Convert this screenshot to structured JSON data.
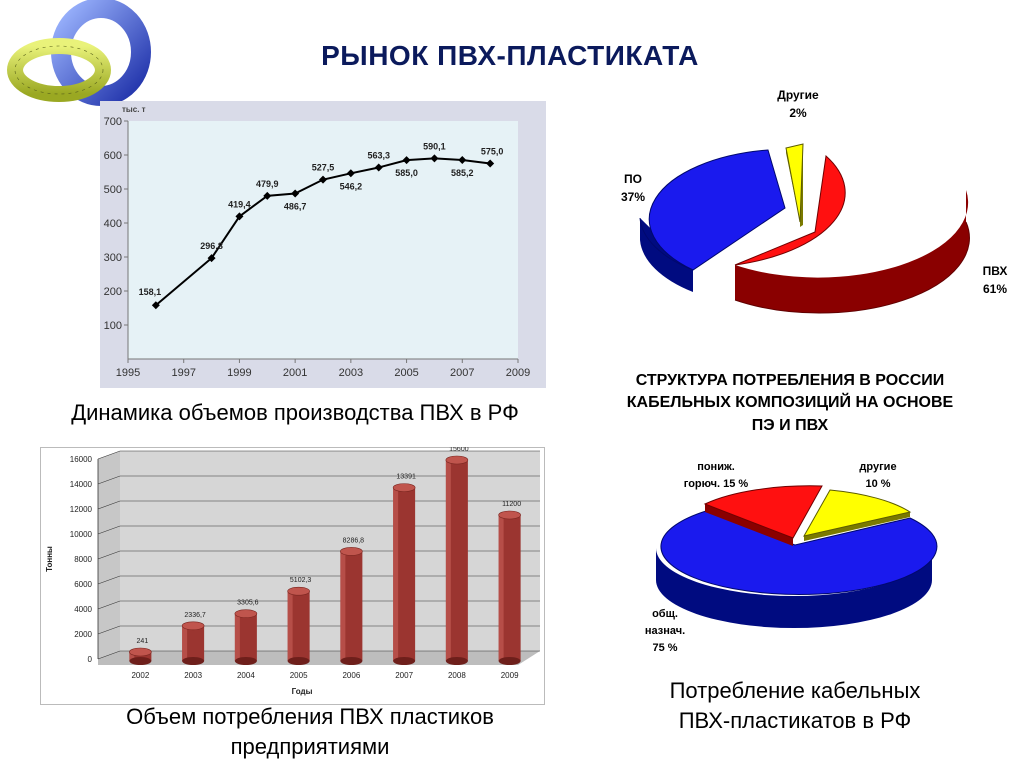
{
  "slide": {
    "title": "РЫНОК ПВХ-ПЛАСТИКАТА",
    "line_caption": "Динамика объемов производства ПВХ в РФ",
    "bar_caption_1": "Объем потребления ПВХ пластиков",
    "bar_caption_2": "предприятиями",
    "structure_title_1": "СТРУКТУРА ПОТРЕБЛЕНИЯ В РОССИИ",
    "structure_title_2": "КАБЕЛЬНЫХ КОМПОЗИЦИЙ  НА ОСНОВЕ",
    "structure_title_3": "ПЭ И ПВХ",
    "pie2_caption_1": "Потребление кабельных",
    "pie2_caption_2": "ПВХ-пластикатов в РФ",
    "logo_icon": "torus-logo-icon"
  },
  "chart_data": [
    {
      "type": "line",
      "ylabel": "тыс. т",
      "x": [
        1996,
        1998,
        1999,
        2000,
        2001,
        2002,
        2003,
        2004,
        2005,
        2006,
        2007,
        2008
      ],
      "values": [
        158.1,
        296.8,
        419.4,
        479.9,
        486.7,
        527.5,
        546.2,
        563.3,
        585.0,
        590.1,
        585.2,
        575.0
      ],
      "data_labels": [
        "158,1",
        "296,8",
        "419,4",
        "479,9",
        "486,7",
        "527,5",
        "546,2",
        "563,3",
        "585,0",
        "590,1",
        "585,2",
        "575,0"
      ],
      "xlim": [
        1995,
        2009
      ],
      "ylim": [
        0,
        700
      ],
      "xticks": [
        "1995",
        "1997",
        "1999",
        "2001",
        "2003",
        "2005",
        "2007",
        "2009"
      ],
      "yticks": [
        "100",
        "200",
        "300",
        "400",
        "500",
        "600",
        "700"
      ],
      "grid": false,
      "colors": {
        "plot_bg": "#e6f2f6",
        "frame_bg": "#d9dbe8",
        "line": "#000000"
      }
    },
    {
      "type": "bar",
      "xlabel": "Годы",
      "ylabel": "Тонны",
      "categories": [
        "2002",
        "2003",
        "2004",
        "2005",
        "2006",
        "2007",
        "2008",
        "2009"
      ],
      "values": [
        241,
        2336.7,
        3305.6,
        5102.3,
        8286.8,
        13391,
        15600,
        11200
      ],
      "data_labels": [
        "241",
        "2336,7",
        "3305,6",
        "5102,3",
        "8286,8",
        "13391",
        "15600",
        "11200"
      ],
      "ylim": [
        0,
        16000
      ],
      "yticks": [
        "0",
        "2000",
        "4000",
        "6000",
        "8000",
        "10000",
        "12000",
        "14000",
        "16000"
      ],
      "grid": true,
      "colors": {
        "bar": "#9b3530",
        "wall": "#d6d6d6"
      }
    },
    {
      "type": "pie",
      "slices": [
        {
          "label": "ПВХ",
          "pct_label": "61%",
          "value": 61,
          "color": "#ff1010"
        },
        {
          "label": "ПО",
          "pct_label": "37%",
          "value": 37,
          "color": "#1a1aee"
        },
        {
          "label": "Другие",
          "pct_label": "2%",
          "value": 2,
          "color": "#ffff00"
        }
      ]
    },
    {
      "type": "pie",
      "slices": [
        {
          "label_1": "общ.",
          "label_2": "назнач.",
          "pct_label": "75 %",
          "value": 75,
          "color": "#1a1aee"
        },
        {
          "label_1": "пониж.",
          "label_2": "горюч.",
          "pct_label": "15 %",
          "value": 15,
          "color": "#ff1010"
        },
        {
          "label_1": "другие",
          "pct_label": "10 %",
          "value": 10,
          "color": "#ffff00"
        }
      ]
    }
  ]
}
